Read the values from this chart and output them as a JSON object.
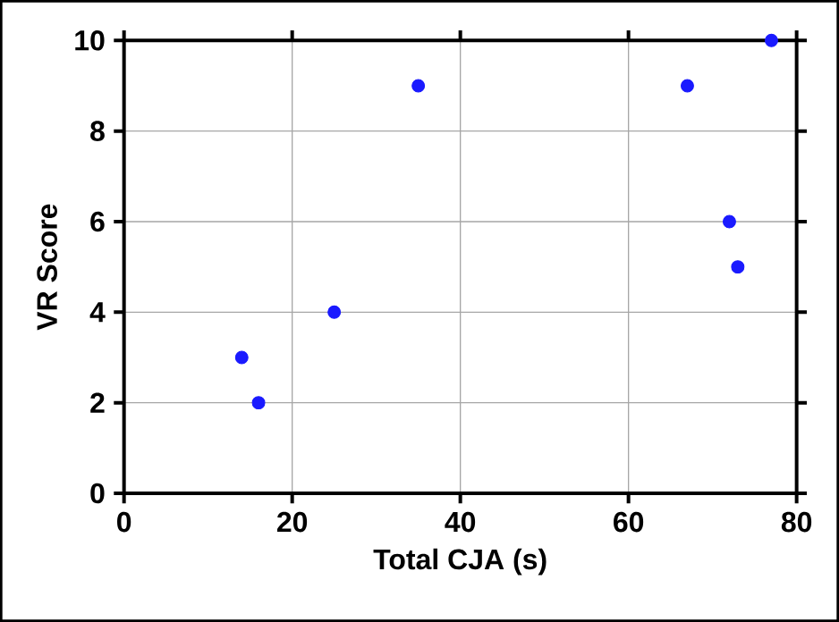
{
  "chart_data": {
    "type": "scatter",
    "xlabel": "Total CJA (s)",
    "ylabel": "VR Score",
    "x": [
      14,
      16,
      25,
      35,
      67,
      72,
      73,
      77
    ],
    "series": [
      {
        "color": "#1a1aff",
        "values": [
          3,
          2,
          4,
          9,
          9,
          6,
          5,
          10
        ]
      }
    ],
    "xlim": [
      0,
      80
    ],
    "ylim": [
      0,
      10
    ],
    "xticks": [
      0,
      20,
      40,
      60,
      80
    ],
    "yticks": [
      0,
      2,
      4,
      6,
      8,
      10
    ],
    "grid": true,
    "marker": "circle"
  }
}
